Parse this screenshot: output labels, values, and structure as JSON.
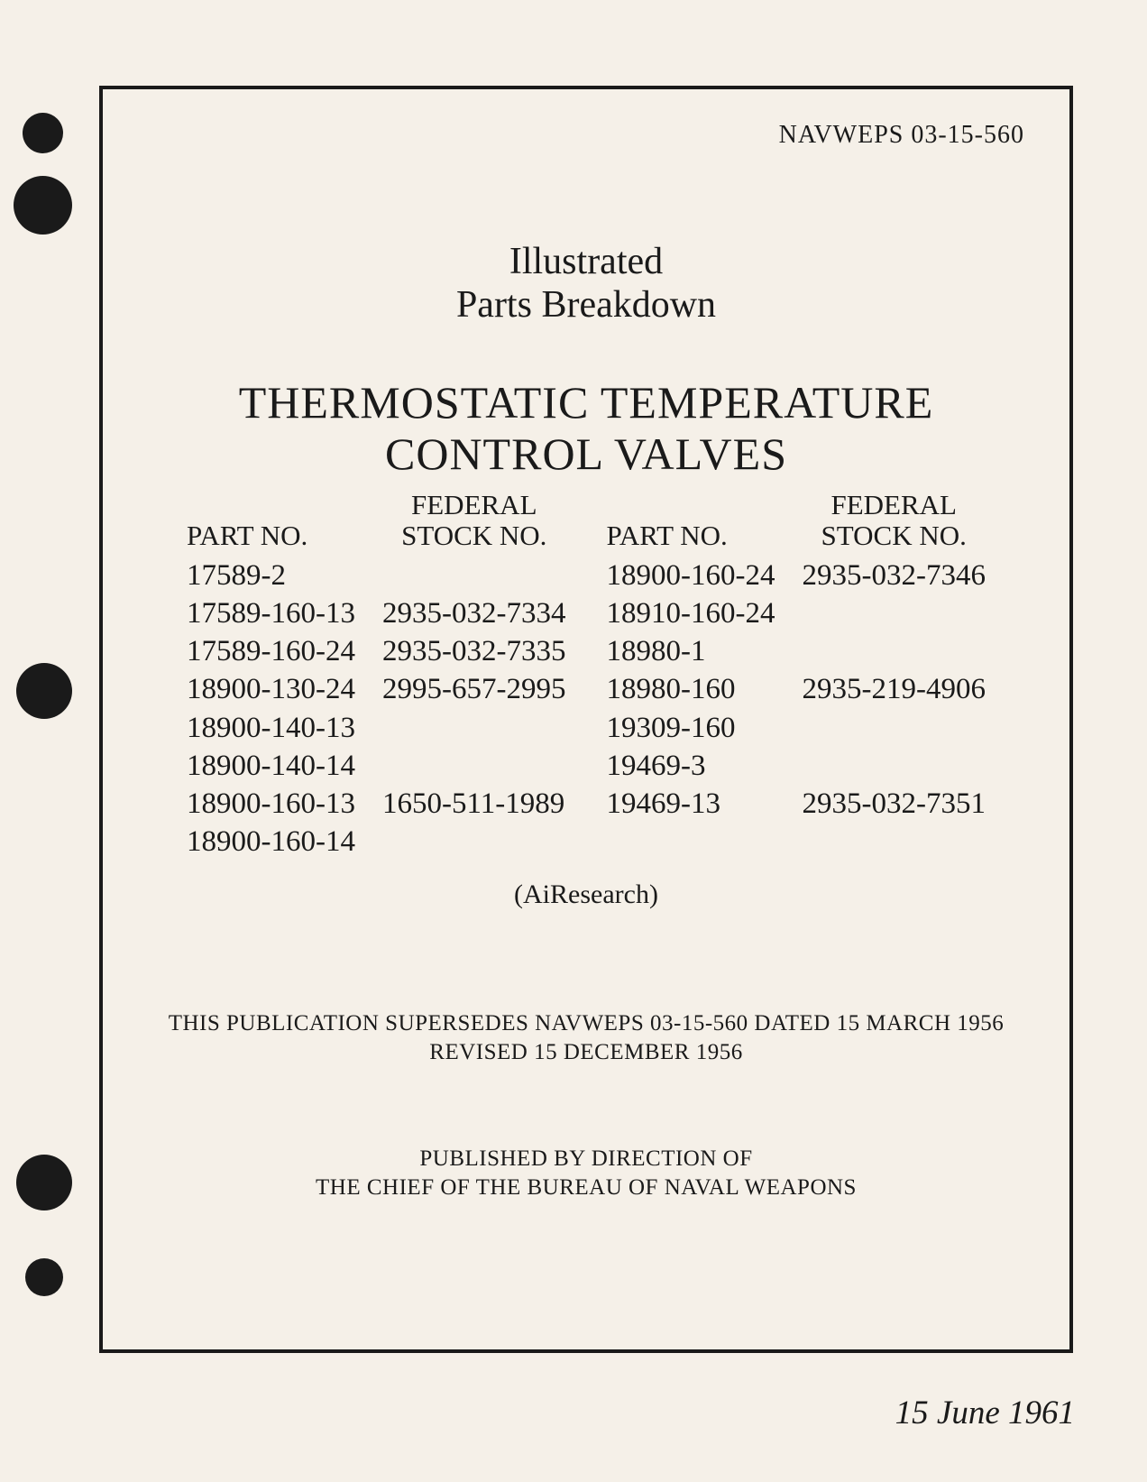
{
  "doc_id": "NAVWEPS 03-15-560",
  "subtitle_line1": "Illustrated",
  "subtitle_line2": "Parts Breakdown",
  "title_line1": "THERMOSTATIC TEMPERATURE",
  "title_line2": "CONTROL VALVES",
  "headers": {
    "part_no": "PART NO.",
    "federal": "FEDERAL",
    "stock_no": "STOCK NO."
  },
  "left_parts": "17589-2\n17589-160-13\n17589-160-24\n18900-130-24\n18900-140-13\n18900-140-14\n18900-160-13\n18900-160-14",
  "left_stock": "\n2935-032-7334\n2935-032-7335\n2995-657-2995\n\n\n1650-511-1989\n",
  "right_parts": "18900-160-24\n18910-160-24\n18980-1\n18980-160\n19309-160\n19469-3\n19469-13",
  "right_stock": "2935-032-7346\n\n\n2935-219-4906\n\n\n2935-032-7351",
  "manufacturer": "(AiResearch)",
  "supersedes_line1": "THIS PUBLICATION SUPERSEDES NAVWEPS 03-15-560 DATED 15 MARCH 1956",
  "supersedes_line2": "REVISED 15 DECEMBER 1956",
  "published_line1": "PUBLISHED BY DIRECTION OF",
  "published_line2": "THE CHIEF OF THE BUREAU OF NAVAL WEAPONS",
  "date": "15 June 1961",
  "colors": {
    "background": "#f5f0e8",
    "text": "#1a1a1a",
    "hole": "#1a1a1a"
  }
}
